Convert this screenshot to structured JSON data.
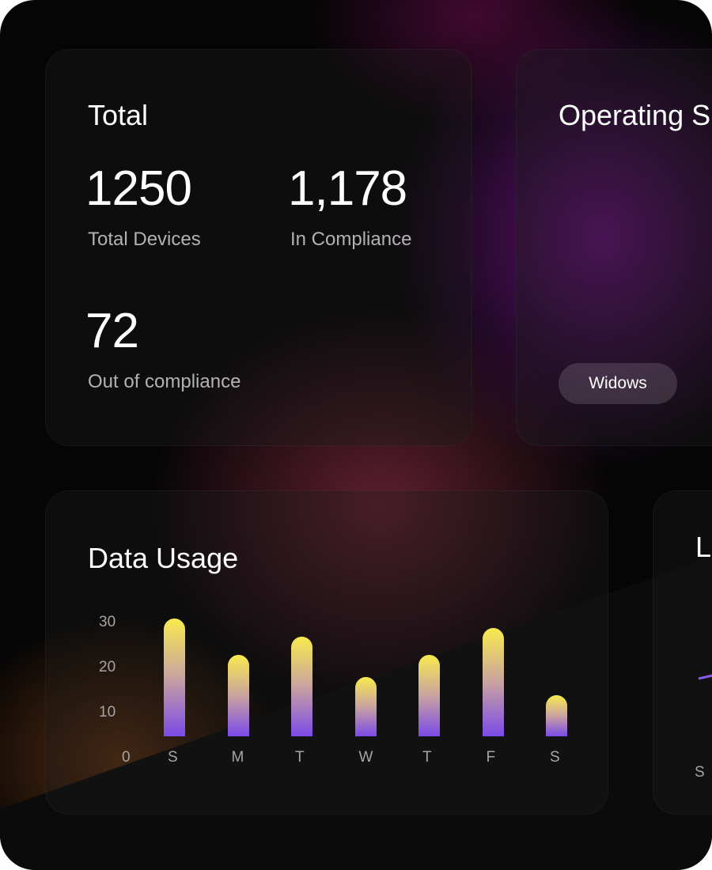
{
  "total_card": {
    "title": "Total",
    "stats": [
      {
        "value": "1250",
        "label": "Total Devices"
      },
      {
        "value": "1,178",
        "label": "In Compliance"
      },
      {
        "value": "72",
        "label": "Out of compliance"
      }
    ]
  },
  "os_card": {
    "title": "Operating S",
    "pill": "Widows"
  },
  "data_usage": {
    "title": "Data Usage"
  },
  "right_card": {
    "title": "L",
    "x_label": "S"
  },
  "chart_data": {
    "type": "bar",
    "title": "Data Usage",
    "categories": [
      "S",
      "M",
      "T",
      "W",
      "T",
      "F",
      "S"
    ],
    "values": [
      31,
      23,
      27,
      18,
      23,
      29,
      14
    ],
    "yticks": [
      "0",
      "10",
      "20",
      "30"
    ],
    "ylim": [
      0,
      30
    ],
    "grid": false,
    "colors": {
      "top": "#f8ea4e",
      "bottom": "#7b4ae8"
    }
  }
}
